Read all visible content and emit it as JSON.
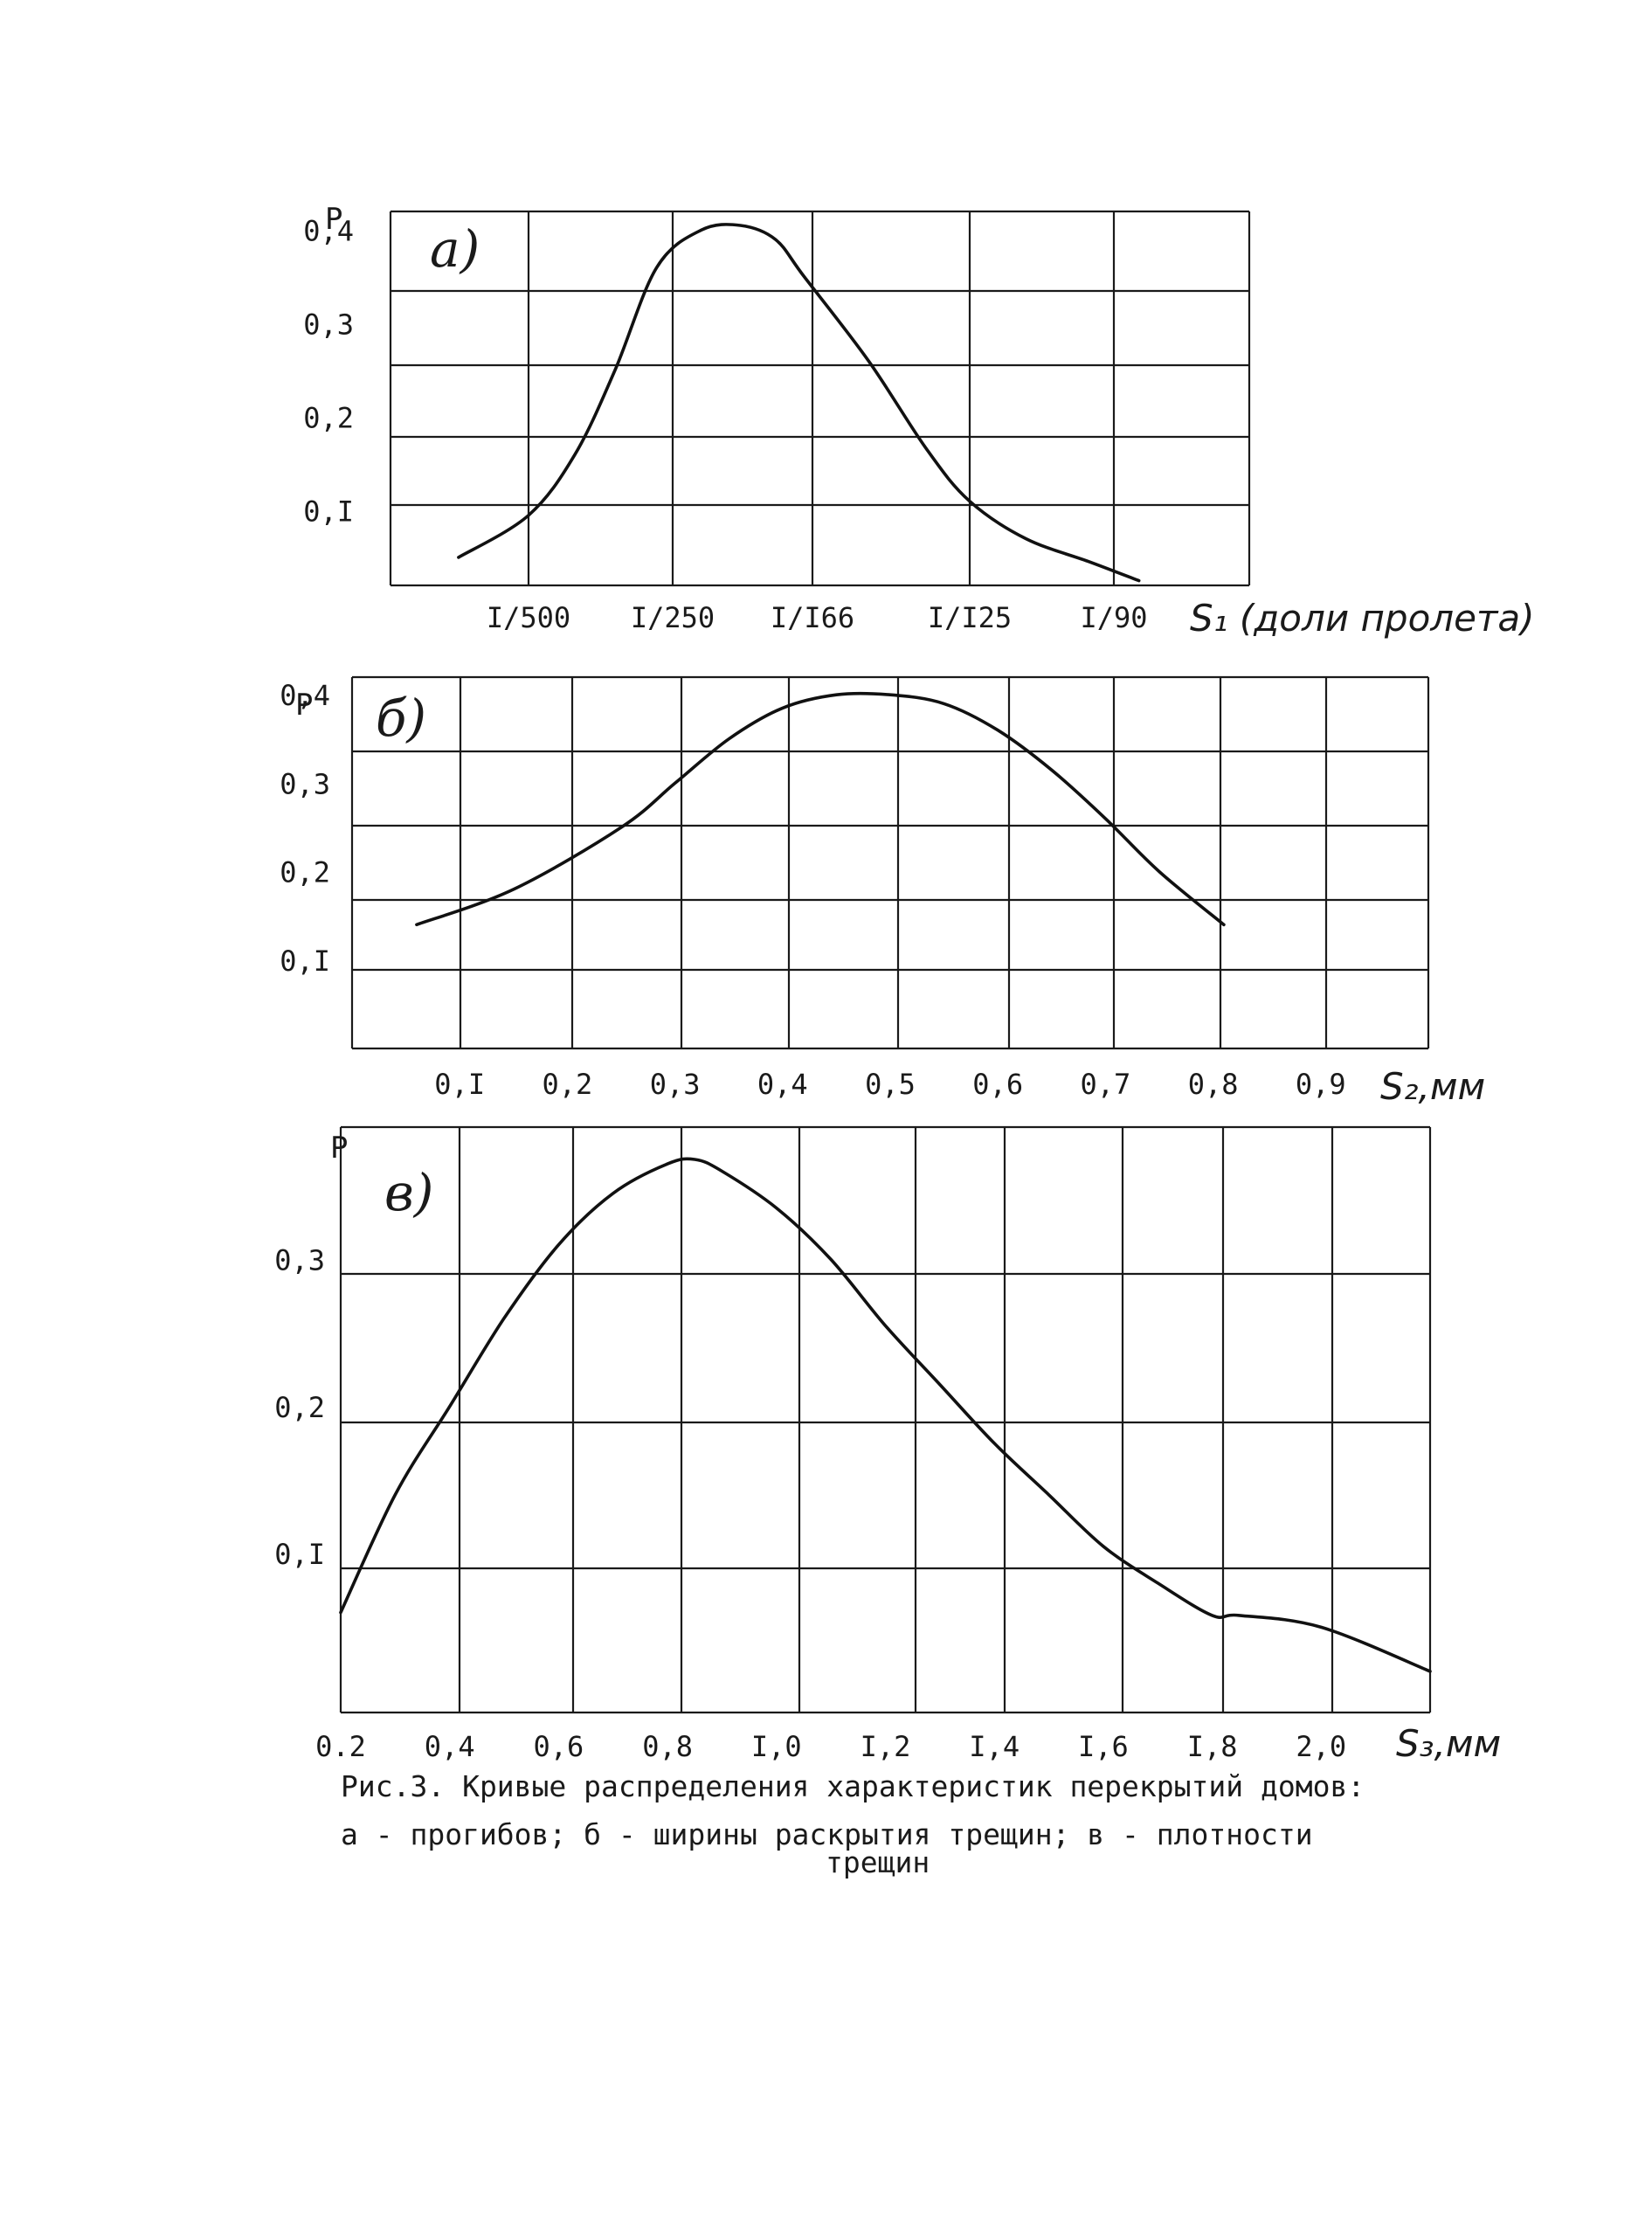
{
  "chart_data": [
    {
      "type": "line",
      "panel_label": "а)",
      "ylabel": "P",
      "xlabel": "S₁ (доли пролета)",
      "x_tick_labels": [
        "I/500",
        "I/250",
        "I/I66",
        "I/I25",
        "I/90"
      ],
      "x_tick_values": [
        500,
        250,
        166,
        125,
        90
      ],
      "y_tick_labels": [
        "0,I",
        "0,2",
        "0,3",
        "0,4"
      ],
      "y_tick_values": [
        0.1,
        0.2,
        0.3,
        0.4
      ],
      "ylim": [
        0.02,
        0.42
      ],
      "series": [
        {
          "x": [
            700,
            500,
            400,
            330,
            270,
            230,
            205,
            185,
            170,
            150,
            135,
            125,
            110,
            95,
            85
          ],
          "y": [
            0.05,
            0.095,
            0.16,
            0.25,
            0.36,
            0.4,
            0.405,
            0.39,
            0.35,
            0.26,
            0.165,
            0.11,
            0.07,
            0.045,
            0.025
          ]
        }
      ]
    },
    {
      "type": "line",
      "panel_label": "б)",
      "ylabel": "P",
      "xlabel": "S₂,мм",
      "x_tick_labels": [
        "0,I",
        "0,2",
        "0,3",
        "0,4",
        "0,5",
        "0,6",
        "0,7",
        "0,8",
        "0,9"
      ],
      "x_tick_values": [
        0.1,
        0.2,
        0.3,
        0.4,
        0.5,
        0.6,
        0.7,
        0.8,
        0.9
      ],
      "y_tick_labels": [
        "0,I",
        "0,2",
        "0,3",
        "0,4"
      ],
      "y_tick_values": [
        0.1,
        0.2,
        0.3,
        0.4
      ],
      "xlim": [
        0.0,
        1.0
      ],
      "ylim": [
        0.0,
        0.42
      ],
      "series": [
        {
          "x": [
            0.06,
            0.15,
            0.25,
            0.3,
            0.35,
            0.4,
            0.45,
            0.5,
            0.55,
            0.6,
            0.65,
            0.7,
            0.75,
            0.81
          ],
          "y": [
            0.14,
            0.18,
            0.25,
            0.3,
            0.35,
            0.385,
            0.4,
            0.4,
            0.39,
            0.36,
            0.315,
            0.26,
            0.2,
            0.14
          ]
        }
      ]
    },
    {
      "type": "line",
      "panel_label": "в)",
      "ylabel": "P",
      "xlabel": "S₃,мм",
      "x_tick_labels": [
        "0.2",
        "0,4",
        "0,6",
        "0,8",
        "I,0",
        "I,2",
        "I,4",
        "I,6",
        "I,8",
        "2,0"
      ],
      "x_tick_values": [
        0.2,
        0.4,
        0.6,
        0.8,
        1.0,
        1.2,
        1.4,
        1.6,
        1.8,
        2.0
      ],
      "y_tick_labels": [
        "0,I",
        "0,2",
        "0,3"
      ],
      "y_tick_values": [
        0.1,
        0.2,
        0.3
      ],
      "xlim": [
        0.2,
        2.2
      ],
      "ylim": [
        -0.008,
        0.39
      ],
      "series": [
        {
          "x": [
            0.2,
            0.3,
            0.4,
            0.5,
            0.6,
            0.7,
            0.8,
            0.85,
            0.9,
            1.0,
            1.1,
            1.2,
            1.3,
            1.4,
            1.5,
            1.6,
            1.7,
            1.8,
            1.85,
            2.0,
            2.2
          ],
          "y": [
            0.06,
            0.14,
            0.2,
            0.26,
            0.31,
            0.345,
            0.365,
            0.368,
            0.36,
            0.335,
            0.3,
            0.255,
            0.215,
            0.175,
            0.14,
            0.105,
            0.08,
            0.058,
            0.058,
            0.05,
            0.02
          ]
        }
      ]
    }
  ],
  "caption": {
    "line1": "Рис.3. Кривые распределения характеристик перекрытий домов:",
    "line2": "а - прогибов; б - ширины раскрытия трещин; в - плотности",
    "line3": "трещин"
  }
}
